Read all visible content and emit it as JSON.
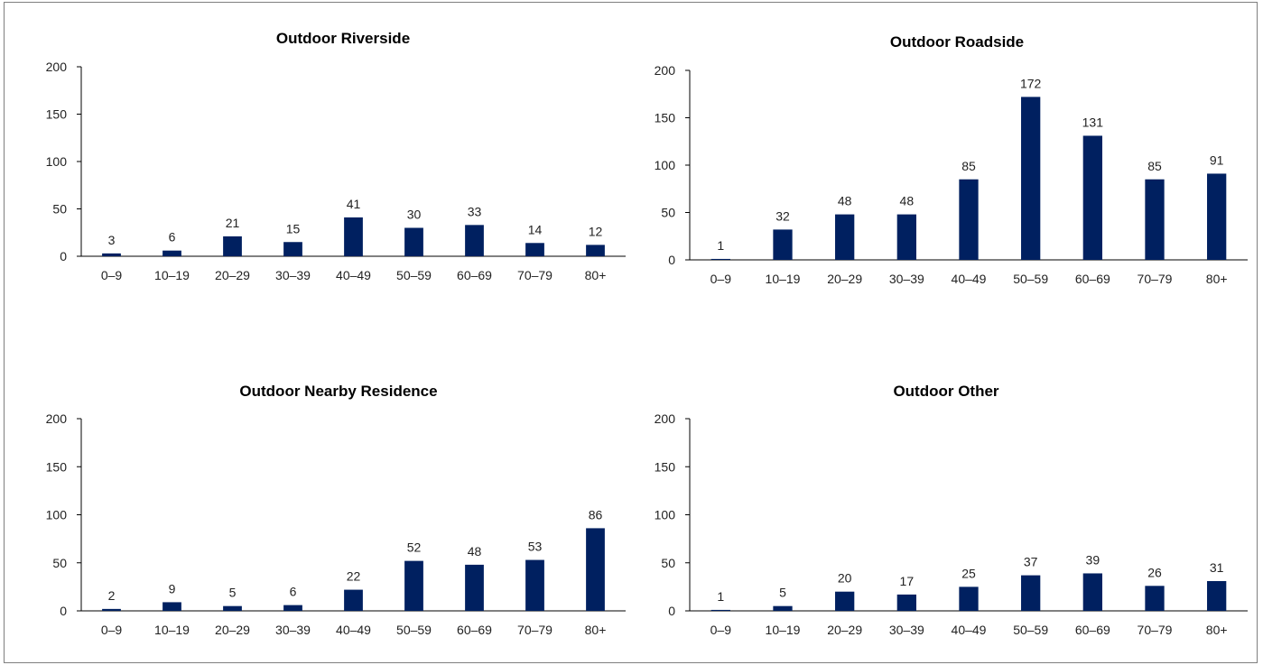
{
  "chart_data": [
    {
      "type": "bar",
      "title": "Outdoor Riverside",
      "categories": [
        "0–9",
        "10–19",
        "20–29",
        "30–39",
        "40–49",
        "50–59",
        "60–69",
        "70–79",
        "80+"
      ],
      "values": [
        3,
        6,
        21,
        15,
        41,
        30,
        33,
        14,
        12
      ],
      "ylim": [
        0,
        200
      ],
      "yticks": [
        0,
        50,
        100,
        150,
        200
      ],
      "grid": false,
      "bar_color": "#002060"
    },
    {
      "type": "bar",
      "title": "Outdoor Roadside",
      "categories": [
        "0–9",
        "10–19",
        "20–29",
        "30–39",
        "40–49",
        "50–59",
        "60–69",
        "70–79",
        "80+"
      ],
      "values": [
        1,
        32,
        48,
        48,
        85,
        172,
        131,
        85,
        91
      ],
      "ylim": [
        0,
        200
      ],
      "yticks": [
        0,
        50,
        100,
        150,
        200
      ],
      "grid": false,
      "bar_color": "#002060"
    },
    {
      "type": "bar",
      "title": "Outdoor Nearby Residence",
      "categories": [
        "0–9",
        "10–19",
        "20–29",
        "30–39",
        "40–49",
        "50–59",
        "60–69",
        "70–79",
        "80+"
      ],
      "values": [
        2,
        9,
        5,
        6,
        22,
        52,
        48,
        53,
        86
      ],
      "ylim": [
        0,
        200
      ],
      "yticks": [
        0,
        50,
        100,
        150,
        200
      ],
      "grid": false,
      "bar_color": "#002060"
    },
    {
      "type": "bar",
      "title": "Outdoor Other",
      "categories": [
        "0–9",
        "10–19",
        "20–29",
        "30–39",
        "40–49",
        "50–59",
        "60–69",
        "70–79",
        "80+"
      ],
      "values": [
        1,
        5,
        20,
        17,
        25,
        37,
        39,
        26,
        31
      ],
      "ylim": [
        0,
        200
      ],
      "yticks": [
        0,
        50,
        100,
        150,
        200
      ],
      "grid": false,
      "bar_color": "#002060"
    }
  ]
}
